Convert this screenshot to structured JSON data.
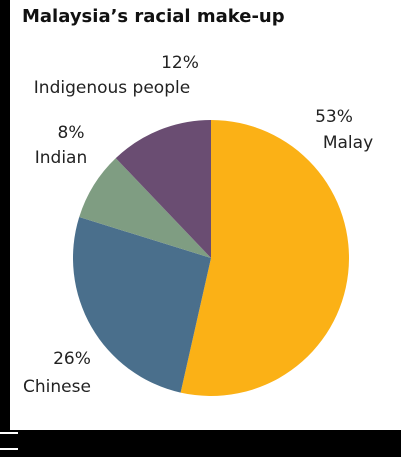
{
  "chart_data": {
    "type": "pie",
    "title": "Malaysia’s racial make-up",
    "slices": [
      {
        "label": "Malay",
        "pct_label": "53%",
        "value": 53,
        "color": "#fbb116"
      },
      {
        "label": "Chinese",
        "pct_label": "26%",
        "value": 26,
        "color": "#4a6f8c"
      },
      {
        "label": "Indian",
        "pct_label": "8%",
        "value": 8,
        "color": "#7f9d82"
      },
      {
        "label": "Indigenous people",
        "pct_label": "12%",
        "value": 12,
        "color": "#6a4d72"
      }
    ],
    "start_angle_deg": 0,
    "direction": "clockwise"
  }
}
